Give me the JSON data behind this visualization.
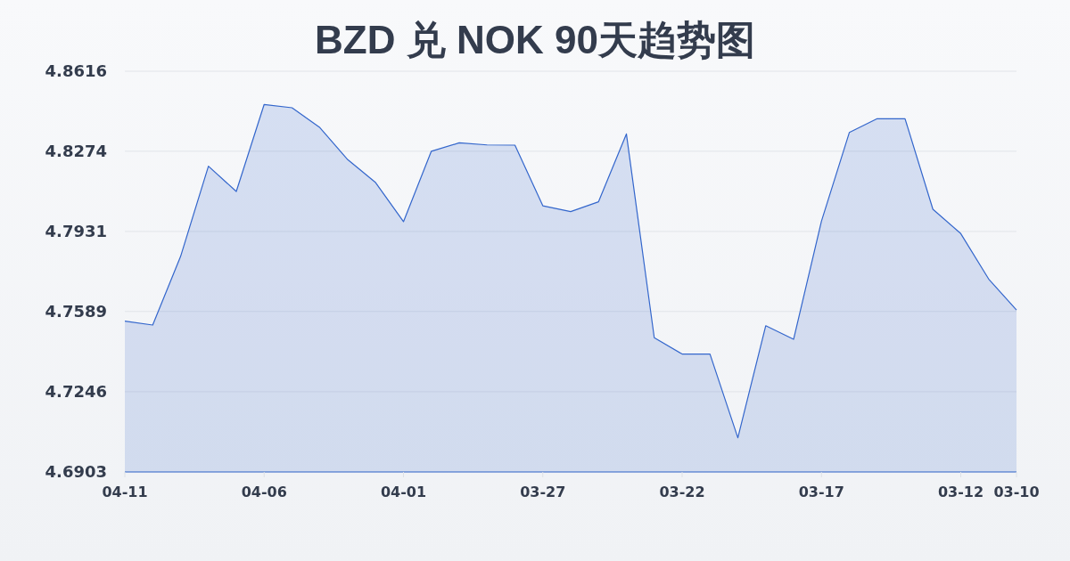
{
  "chart_data": {
    "type": "area",
    "title": "BZD 兑 NOK 90天趋势图",
    "categories": [
      "04-11",
      null,
      null,
      null,
      null,
      "04-06",
      null,
      null,
      null,
      null,
      "04-01",
      null,
      null,
      null,
      null,
      "03-27",
      null,
      null,
      null,
      null,
      "03-22",
      null,
      null,
      null,
      null,
      "03-17",
      null,
      null,
      null,
      null,
      "03-12",
      null,
      "03-10"
    ],
    "values": [
      4.7548,
      4.7531,
      4.7824,
      4.821,
      4.8102,
      4.8474,
      4.846,
      4.8375,
      4.8238,
      4.814,
      4.7973,
      4.8274,
      4.831,
      4.8301,
      4.83,
      4.8041,
      4.8016,
      4.8058,
      4.8348,
      4.7477,
      4.7407,
      4.7407,
      4.7049,
      4.7528,
      4.747,
      4.7975,
      4.8354,
      4.8413,
      4.8413,
      4.8026,
      4.7922,
      4.7728,
      4.7595
    ],
    "color": "#3366cc",
    "ylim": [
      4.6903,
      4.8616
    ],
    "yticks": [
      4.6903,
      4.7246,
      4.7589,
      4.7931,
      4.8274,
      4.8616
    ],
    "grid": "y"
  }
}
